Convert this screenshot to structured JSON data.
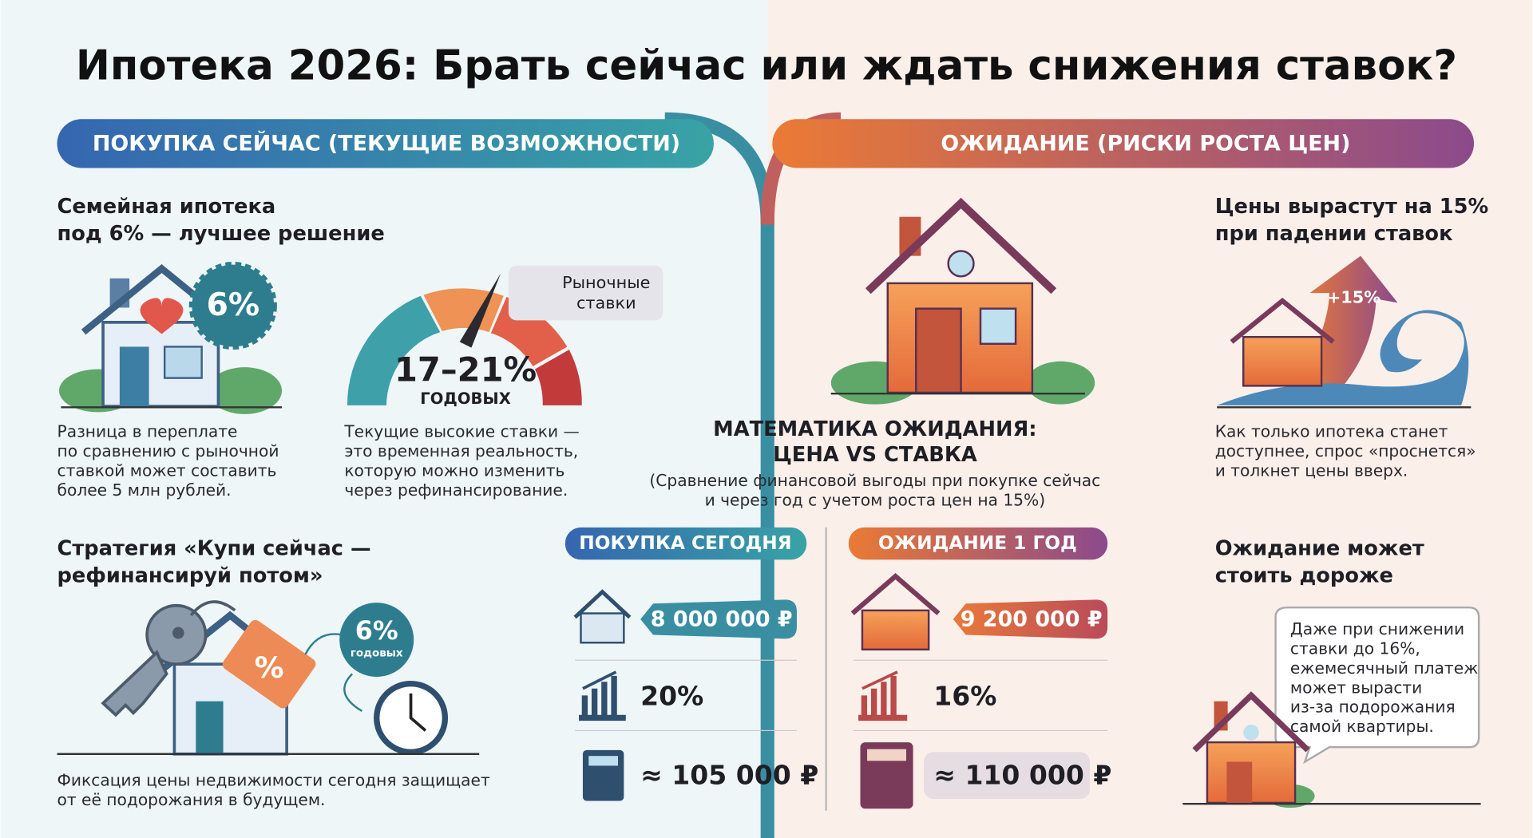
{
  "title": "Ипотека 2026: Брать сейчас или ждать снижения ставок?",
  "left_banner": "ПОКУПКА СЕЙЧАС (ТЕКУЩИЕ ВОЗМОЖНОСТИ)",
  "right_banner": "ОЖИДАНИЕ (РИСКИ РОСТА ЦЕН)",
  "family": {
    "heading": [
      "Семейная ипотека",
      "под 6% — лучшее решение"
    ],
    "badge": "6%",
    "text": [
      "Разница в переплате",
      "по сравнению с рыночной",
      "ставкой может составить",
      "более 5 млн рублей."
    ]
  },
  "gauge": {
    "label": [
      "Рыночные",
      "ставки"
    ],
    "value": "17–21%",
    "unit": "ГОДОВЫХ",
    "text": [
      "Текущие высокие ставки —",
      "это временная реальность,",
      "которую можно изменить",
      "через рефинансирование."
    ]
  },
  "strategy": {
    "heading": [
      "Стратегия «Купи сейчас —",
      "рефинансируй потом»"
    ],
    "tag": "%",
    "badge": "6%",
    "badge_unit": "годовых",
    "text": [
      "Фиксация цены недвижимости сегодня защищает",
      "от её подорожания в будущем."
    ]
  },
  "math": {
    "title": [
      "МАТЕМАТИКА ОЖИДАНИЯ:",
      "ЦЕНА VS СТАВКА"
    ],
    "subtitle": [
      "(Сравнение финансовой выгоды при покупке сейчас",
      "и через год с учетом роста цен на 15%)"
    ],
    "today": {
      "label": "ПОКУПКА СЕГОДНЯ",
      "price": "8 000 000 ₽",
      "rate": "20%",
      "payment": "≈ 105 000 ₽"
    },
    "wait": {
      "label": "ОЖИДАНИЕ 1 ГОД",
      "price": "9 200 000 ₽",
      "rate": "16%",
      "payment": "≈ 110 000 ₽"
    }
  },
  "prices": {
    "heading": [
      "Цены вырастут на 15%",
      "при падении ставок"
    ],
    "badge": "+15%",
    "text": [
      "Как только ипотека станет",
      "доступнее, спрос «проснется»",
      "и толкнет цены вверх."
    ]
  },
  "wait_cost": {
    "heading": [
      "Ожидание может",
      "стоить дороже"
    ],
    "bubble": [
      "Даже при снижении",
      "ставки до 16%,",
      "ежемесячный платеж",
      "может вырасти",
      "из-за подорожания",
      "самой квартиры."
    ]
  }
}
